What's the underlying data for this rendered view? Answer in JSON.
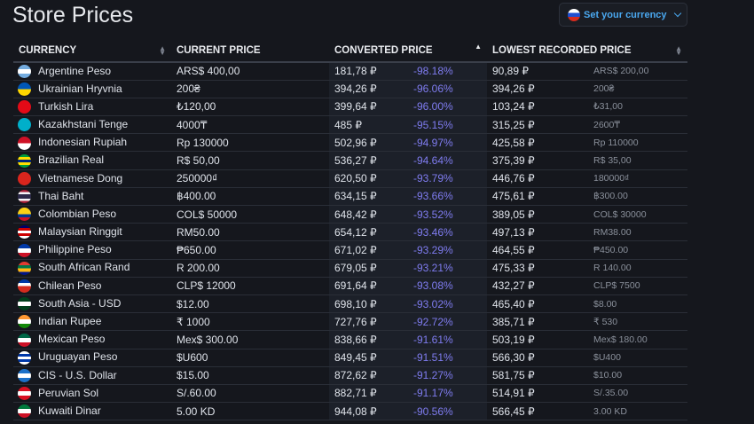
{
  "title": "Store Prices",
  "currency_button": {
    "label": "Set your currency",
    "flag": "russia"
  },
  "headers": {
    "currency": "CURRENCY",
    "current": "CURRENT PRICE",
    "converted": "CONVERTED PRICE",
    "lowest": "LOWEST RECORDED PRICE"
  },
  "rows": [
    {
      "name": "Argentine Peso",
      "current": "ARS$ 400,00",
      "converted": "181,78 ₽",
      "pct": "-98.18%",
      "lowest": "90,89 ₽",
      "lowest_orig": "ARS$ 200,00",
      "flag": [
        "#74acdf",
        "#ffffff",
        "#74acdf"
      ]
    },
    {
      "name": "Ukrainian Hryvnia",
      "current": "200₴",
      "converted": "394,26 ₽",
      "pct": "-96.06%",
      "lowest": "394,26 ₽",
      "lowest_orig": "200₴",
      "flag": [
        "#0057b7",
        "#ffd700"
      ]
    },
    {
      "name": "Turkish Lira",
      "current": "₺120,00",
      "converted": "399,64 ₽",
      "pct": "-96.00%",
      "lowest": "103,24 ₽",
      "lowest_orig": "₺31,00",
      "flag": [
        "#e30a17",
        "#e30a17"
      ]
    },
    {
      "name": "Kazakhstani Tenge",
      "current": "4000₸",
      "converted": "485 ₽",
      "pct": "-95.15%",
      "lowest": "315,25 ₽",
      "lowest_orig": "2600₸",
      "flag": [
        "#00afca",
        "#00afca"
      ]
    },
    {
      "name": "Indonesian Rupiah",
      "current": "Rp 130000",
      "converted": "502,96 ₽",
      "pct": "-94.97%",
      "lowest": "425,58 ₽",
      "lowest_orig": "Rp 110000",
      "flag": [
        "#ce1126",
        "#ffffff"
      ]
    },
    {
      "name": "Brazilian Real",
      "current": "R$ 50,00",
      "converted": "536,27 ₽",
      "pct": "-94.64%",
      "lowest": "375,39 ₽",
      "lowest_orig": "R$ 35,00",
      "flag": [
        "#009c3b",
        "#ffdf00",
        "#002776",
        "#ffdf00",
        "#009c3b"
      ]
    },
    {
      "name": "Vietnamese Dong",
      "current": "250000₫",
      "converted": "620,50 ₽",
      "pct": "-93.79%",
      "lowest": "446,76 ₽",
      "lowest_orig": "180000₫",
      "flag": [
        "#da251d",
        "#da251d"
      ]
    },
    {
      "name": "Thai Baht",
      "current": "฿400.00",
      "converted": "634,15 ₽",
      "pct": "-93.66%",
      "lowest": "475,61 ₽",
      "lowest_orig": "฿300.00",
      "flag": [
        "#a51931",
        "#f4f5f8",
        "#2d2a4a",
        "#2d2a4a",
        "#f4f5f8",
        "#a51931"
      ]
    },
    {
      "name": "Colombian Peso",
      "current": "COL$ 50000",
      "converted": "648,42 ₽",
      "pct": "-93.52%",
      "lowest": "389,05 ₽",
      "lowest_orig": "COL$ 30000",
      "flag": [
        "#fcd116",
        "#fcd116",
        "#003893",
        "#ce1126"
      ]
    },
    {
      "name": "Malaysian Ringgit",
      "current": "RM50.00",
      "converted": "654,12 ₽",
      "pct": "-93.46%",
      "lowest": "497,13 ₽",
      "lowest_orig": "RM38.00",
      "flag": [
        "#010066",
        "#cc0001",
        "#ffffff",
        "#cc0001",
        "#ffffff"
      ]
    },
    {
      "name": "Philippine Peso",
      "current": "₱650.00",
      "converted": "671,02 ₽",
      "pct": "-93.29%",
      "lowest": "464,55 ₽",
      "lowest_orig": "₱450.00",
      "flag": [
        "#0038a8",
        "#ffffff",
        "#ce1126"
      ]
    },
    {
      "name": "South African Rand",
      "current": "R 200.00",
      "converted": "679,05 ₽",
      "pct": "-93.21%",
      "lowest": "475,33 ₽",
      "lowest_orig": "R 140.00",
      "flag": [
        "#e03c31",
        "#007749",
        "#ffb612",
        "#001489"
      ]
    },
    {
      "name": "Chilean Peso",
      "current": "CLP$ 12000",
      "converted": "691,64 ₽",
      "pct": "-93.08%",
      "lowest": "432,27 ₽",
      "lowest_orig": "CLP$ 7500",
      "flag": [
        "#0039a6",
        "#ffffff",
        "#d52b1e",
        "#d52b1e"
      ]
    },
    {
      "name": "South Asia - USD",
      "current": "$12.00",
      "converted": "698,10 ₽",
      "pct": "-93.02%",
      "lowest": "465,40 ₽",
      "lowest_orig": "$8.00",
      "flag": [
        "#01411c",
        "#ffffff",
        "#01411c"
      ]
    },
    {
      "name": "Indian Rupee",
      "current": "₹ 1000",
      "converted": "727,76 ₽",
      "pct": "-92.72%",
      "lowest": "385,71 ₽",
      "lowest_orig": "₹ 530",
      "flag": [
        "#ff9933",
        "#ffffff",
        "#138808"
      ]
    },
    {
      "name": "Mexican Peso",
      "current": "Mex$ 300.00",
      "converted": "838,66 ₽",
      "pct": "-91.61%",
      "lowest": "503,19 ₽",
      "lowest_orig": "Mex$ 180.00",
      "flag": [
        "#006847",
        "#ffffff",
        "#ce1126"
      ]
    },
    {
      "name": "Uruguayan Peso",
      "current": "$U600",
      "converted": "849,45 ₽",
      "pct": "-91.51%",
      "lowest": "566,30 ₽",
      "lowest_orig": "$U400",
      "flag": [
        "#ffffff",
        "#0038a8",
        "#ffffff",
        "#0038a8",
        "#ffffff"
      ]
    },
    {
      "name": "CIS - U.S. Dollar",
      "current": "$15.00",
      "converted": "872,62 ₽",
      "pct": "-91.27%",
      "lowest": "581,75 ₽",
      "lowest_orig": "$10.00",
      "flag": [
        "#1c71c9",
        "#ffffff",
        "#1c71c9"
      ]
    },
    {
      "name": "Peruvian Sol",
      "current": "S/.60.00",
      "converted": "882,71 ₽",
      "pct": "-91.17%",
      "lowest": "514,91 ₽",
      "lowest_orig": "S/.35.00",
      "flag": [
        "#d91023",
        "#ffffff",
        "#d91023"
      ]
    },
    {
      "name": "Kuwaiti Dinar",
      "current": "5.00 KD",
      "converted": "944,08 ₽",
      "pct": "-90.56%",
      "lowest": "566,45 ₽",
      "lowest_orig": "3.00 KD",
      "flag": [
        "#007a3d",
        "#ffffff",
        "#ce1126"
      ]
    }
  ]
}
